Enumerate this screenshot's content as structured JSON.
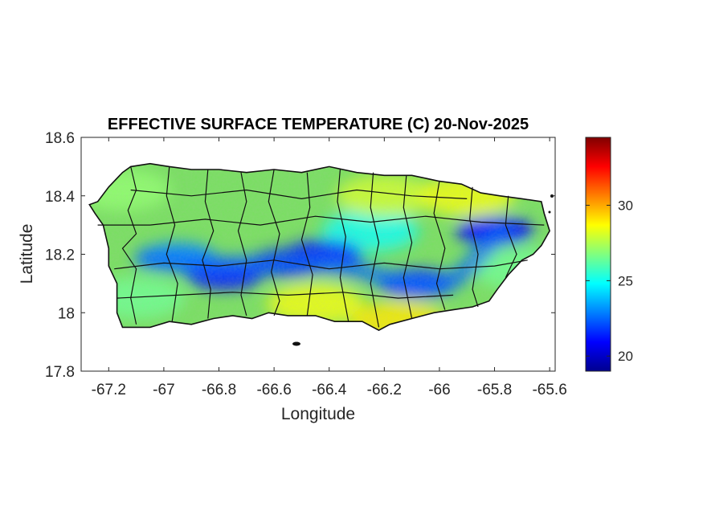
{
  "chart_data": {
    "type": "heatmap",
    "title": "EFFECTIVE SURFACE TEMPERATURE (C) 20-Nov-2025",
    "xlabel": "Longitude",
    "ylabel": "Latitude",
    "xlim": [
      -67.3,
      -65.58
    ],
    "ylim": [
      17.8,
      18.6
    ],
    "xticks": [
      -67.2,
      -67,
      -66.8,
      -66.6,
      -66.4,
      -66.2,
      -66,
      -65.8,
      -65.6
    ],
    "xtick_labels": [
      "-67.2",
      "-67",
      "-66.8",
      "-66.6",
      "-66.4",
      "-66.2",
      "-66",
      "-65.8",
      "-65.6"
    ],
    "yticks": [
      17.8,
      18,
      18.2,
      18.4,
      18.6
    ],
    "ytick_labels": [
      "17.8",
      "18",
      "18.2",
      "18.4",
      "18.6"
    ],
    "colorbar": {
      "colormap": "jet",
      "range": [
        19,
        34.5
      ],
      "ticks": [
        20,
        25,
        30
      ],
      "tick_labels": [
        "20",
        "25",
        "30"
      ]
    },
    "region": "Puerto Rico (municipal boundaries)",
    "field_pattern": [
      {
        "lon": -66.55,
        "lat": 18.17,
        "value": 20.5
      },
      {
        "lon": -66.78,
        "lat": 18.13,
        "value": 21
      },
      {
        "lon": -66.42,
        "lat": 18.2,
        "value": 21.5
      },
      {
        "lon": -66.08,
        "lat": 18.1,
        "value": 21.5
      },
      {
        "lon": -65.8,
        "lat": 18.28,
        "value": 21
      },
      {
        "lon": -66.95,
        "lat": 18.19,
        "value": 23
      },
      {
        "lon": -66.25,
        "lat": 18.28,
        "value": 25
      },
      {
        "lon": -66.2,
        "lat": 18.4,
        "value": 28
      },
      {
        "lon": -65.9,
        "lat": 18.4,
        "value": 28.5
      },
      {
        "lon": -66.45,
        "lat": 18.03,
        "value": 28.5
      },
      {
        "lon": -66.15,
        "lat": 17.97,
        "value": 29
      },
      {
        "lon": -67.1,
        "lat": 18.05,
        "value": 26.5
      },
      {
        "lon": -67.15,
        "lat": 18.42,
        "value": 27
      },
      {
        "lon": -65.7,
        "lat": 18.15,
        "value": 26.5
      }
    ]
  }
}
